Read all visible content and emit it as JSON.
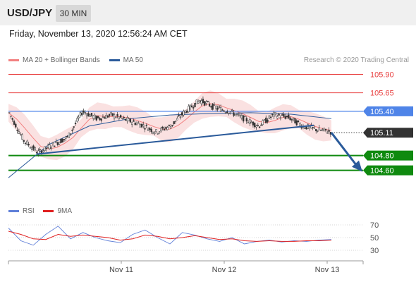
{
  "header": {
    "symbol": "USD/JPY",
    "timeframe": "30 MIN",
    "timestamp": "Friday, November 13, 2020 12:56:24 AM CET"
  },
  "legend": {
    "ma20": "MA 20 + Bollinger Bands",
    "ma50": "MA 50",
    "credit": "Research © 2020 Trading Central",
    "rsi": "RSI",
    "ma9": "9MA"
  },
  "colors": {
    "ma20": "#f28080",
    "ma50": "#2a5a9a",
    "resistance": "#e84040",
    "pivot": "#4f84e8",
    "support": "#0f8a0f",
    "price_tag": "#333333",
    "arrow": "#2a5a9a",
    "rsi": "#5f7fd8",
    "ma9": "#e02020"
  },
  "chart_data": [
    {
      "type": "candlestick",
      "title": "",
      "x_ticks": [
        "Nov 11",
        "Nov 12",
        "Nov 13"
      ],
      "ylim": [
        104.52,
        106.0
      ],
      "levels": [
        {
          "label": "105.90",
          "value": 105.9,
          "kind": "resistance"
        },
        {
          "label": "105.65",
          "value": 105.65,
          "kind": "resistance"
        },
        {
          "label": "105.40",
          "value": 105.4,
          "kind": "pivot"
        },
        {
          "label": "105.11",
          "value": 105.11,
          "kind": "current"
        },
        {
          "label": "104.80",
          "value": 104.8,
          "kind": "support"
        },
        {
          "label": "104.60",
          "value": 104.6,
          "kind": "support"
        }
      ],
      "price_path_approx": [
        105.38,
        105.0,
        104.84,
        104.95,
        105.05,
        105.4,
        105.3,
        105.35,
        105.28,
        105.22,
        105.12,
        105.2,
        105.4,
        105.55,
        105.45,
        105.4,
        105.3,
        105.2,
        105.35,
        105.32,
        105.2,
        105.15,
        105.12
      ],
      "ma50_approx": [
        104.5,
        104.95,
        105.2,
        105.3,
        105.35,
        105.37,
        105.38,
        105.36,
        105.3
      ],
      "trendline": {
        "start": 104.82,
        "end": 105.21
      },
      "forecast_target": 104.6
    },
    {
      "type": "line",
      "title": "RSI",
      "y_ticks": [
        70,
        50,
        30
      ],
      "ylim": [
        20,
        80
      ],
      "series": [
        {
          "name": "RSI",
          "values": [
            65,
            45,
            38,
            55,
            68,
            48,
            58,
            50,
            45,
            42,
            55,
            62,
            50,
            40,
            58,
            54,
            48,
            44,
            50,
            40,
            44,
            46,
            43,
            45,
            44,
            46,
            47
          ]
        },
        {
          "name": "9MA",
          "values": [
            60,
            55,
            48,
            47,
            55,
            52,
            54,
            52,
            50,
            46,
            48,
            54,
            52,
            48,
            50,
            53,
            50,
            47,
            48,
            45,
            44,
            45,
            44,
            44,
            45,
            45,
            46
          ]
        }
      ]
    }
  ]
}
